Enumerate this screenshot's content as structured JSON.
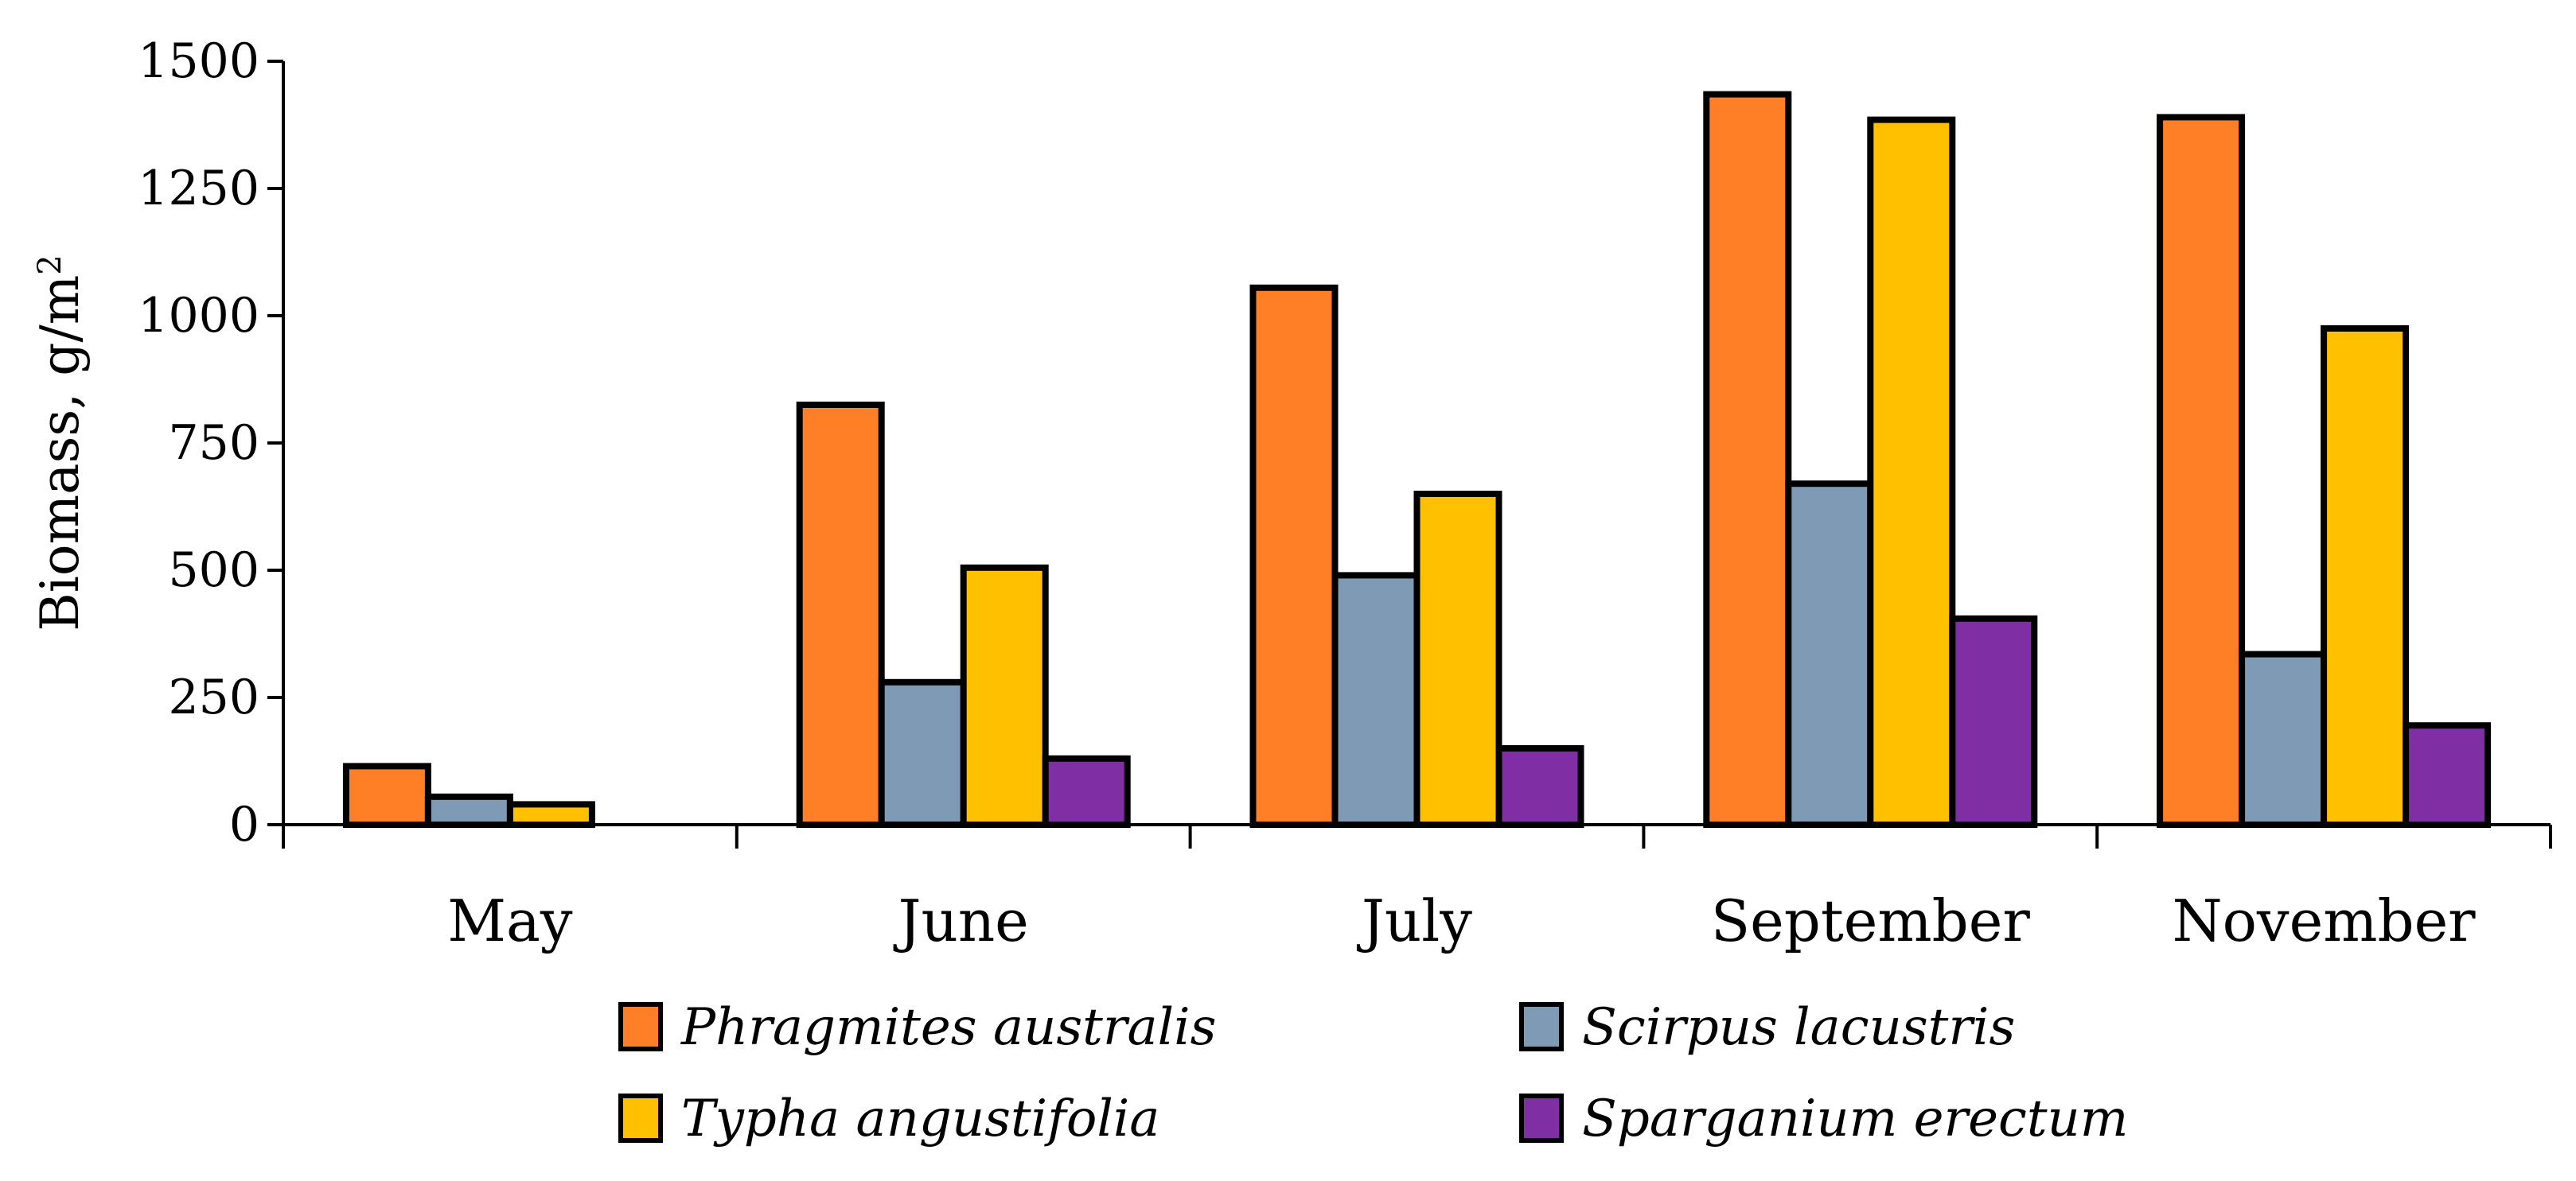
{
  "chart_data": {
    "type": "bar",
    "title": "",
    "xlabel": "",
    "ylabel": "Biomass, g/m",
    "ylabel_superscript": "2",
    "ylim": [
      0,
      1500
    ],
    "yticks": [
      "0",
      "250",
      "500",
      "750",
      "1000",
      "1250",
      "1500"
    ],
    "ytick_values": [
      0,
      250,
      500,
      750,
      1000,
      1250,
      1500
    ],
    "categories": [
      "May",
      "June",
      "July",
      "September",
      "November"
    ],
    "series": [
      {
        "name": "Phragmites australis",
        "color": "#FF7F27",
        "values": [
          115,
          825,
          1055,
          1435,
          1390
        ]
      },
      {
        "name": "Scirpus lacustris",
        "color": "#7F9AB5",
        "values": [
          55,
          280,
          490,
          670,
          335
        ]
      },
      {
        "name": "Typha angustifolia",
        "color": "#FFC000",
        "values": [
          40,
          505,
          650,
          1385,
          975
        ]
      },
      {
        "name": "Sparganium erectum",
        "color": "#7F2FA3",
        "values": [
          0,
          130,
          150,
          405,
          195
        ]
      }
    ],
    "legend_position": "bottom",
    "grid": false
  }
}
